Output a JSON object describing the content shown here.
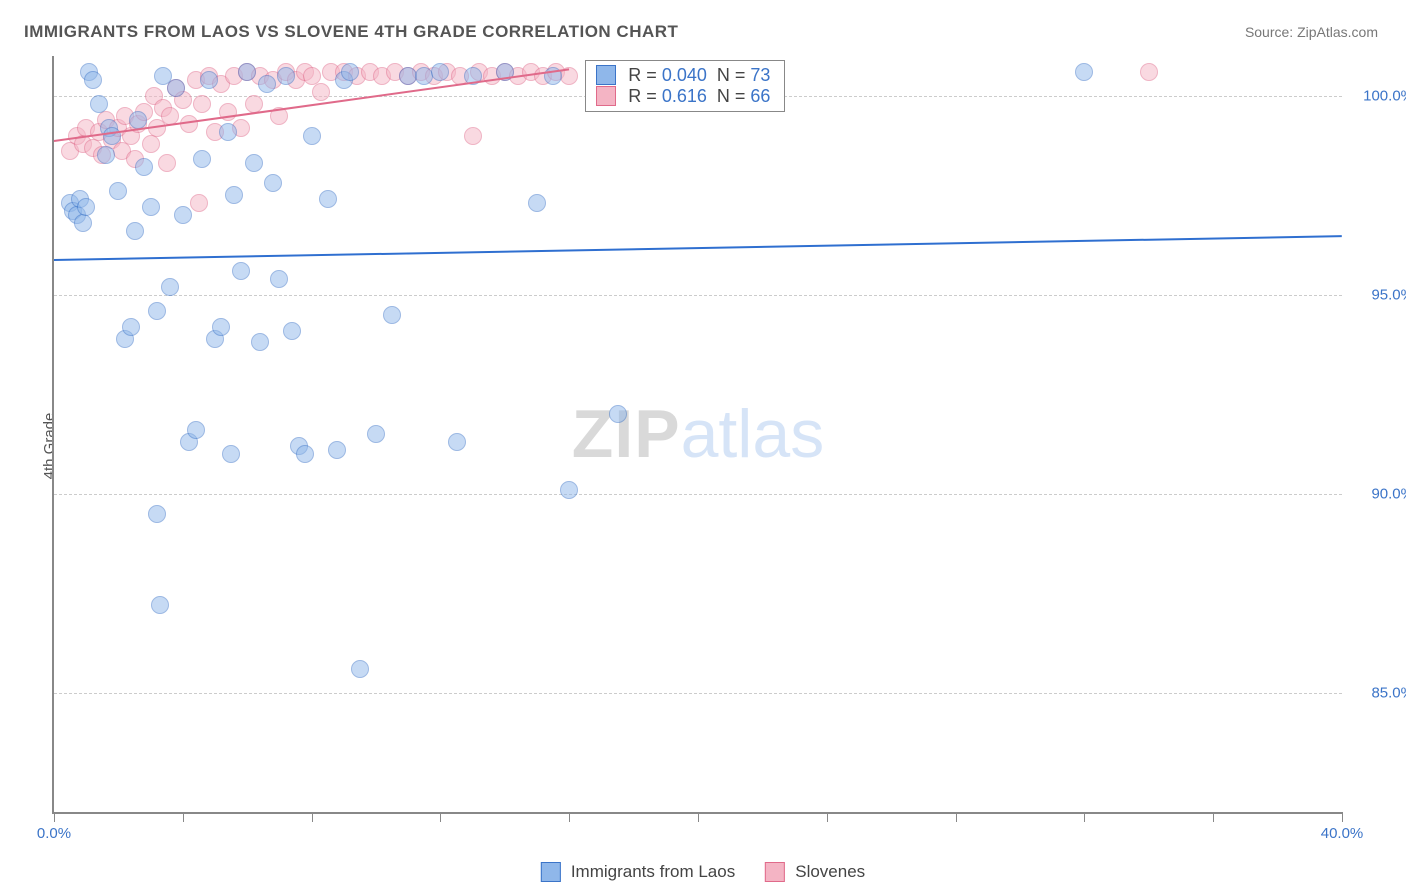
{
  "title": "IMMIGRANTS FROM LAOS VS SLOVENE 4TH GRADE CORRELATION CHART",
  "source_label": "Source: ZipAtlas.com",
  "y_axis_label": "4th Grade",
  "watermark": {
    "part1": "ZIP",
    "part2": "atlas"
  },
  "chart": {
    "type": "scatter",
    "background_color": "#ffffff",
    "grid_color": "#cccccc",
    "axis_color": "#888888",
    "xlim": [
      0,
      40
    ],
    "ylim": [
      82,
      101
    ],
    "x_ticks": [
      0,
      4,
      8,
      12,
      16,
      20,
      24,
      28,
      32,
      36,
      40
    ],
    "x_tick_labels": {
      "0": "0.0%",
      "40": "40.0%"
    },
    "y_ticks": [
      85,
      90,
      95,
      100
    ],
    "y_tick_labels": {
      "85": "85.0%",
      "90": "90.0%",
      "95": "95.0%",
      "100": "100.0%"
    },
    "y_tick_color": "#3b74c8",
    "x_tick_color": "#3b74c8",
    "marker_radius": 9,
    "marker_opacity": 0.5,
    "series": [
      {
        "name": "Immigrants from Laos",
        "color_fill": "#8fb7ea",
        "color_stroke": "#3b74c8",
        "r_value": "0.040",
        "n_value": "73",
        "trend": {
          "x1": 0,
          "y1": 95.9,
          "x2": 40,
          "y2": 96.5,
          "color": "#2f6fd0",
          "width": 2
        },
        "points": [
          [
            0.5,
            97.3
          ],
          [
            0.6,
            97.1
          ],
          [
            0.7,
            97.0
          ],
          [
            0.8,
            97.4
          ],
          [
            0.9,
            96.8
          ],
          [
            1.0,
            97.2
          ],
          [
            1.1,
            100.6
          ],
          [
            1.2,
            100.4
          ],
          [
            1.4,
            99.8
          ],
          [
            1.6,
            98.5
          ],
          [
            1.7,
            99.2
          ],
          [
            1.8,
            99.0
          ],
          [
            2.0,
            97.6
          ],
          [
            2.2,
            93.9
          ],
          [
            2.4,
            94.2
          ],
          [
            2.5,
            96.6
          ],
          [
            2.6,
            99.4
          ],
          [
            2.8,
            98.2
          ],
          [
            3.0,
            97.2
          ],
          [
            3.2,
            94.6
          ],
          [
            3.4,
            100.5
          ],
          [
            3.6,
            95.2
          ],
          [
            3.8,
            100.2
          ],
          [
            3.2,
            89.5
          ],
          [
            3.3,
            87.2
          ],
          [
            4.0,
            97.0
          ],
          [
            4.2,
            91.3
          ],
          [
            4.4,
            91.6
          ],
          [
            4.6,
            98.4
          ],
          [
            4.8,
            100.4
          ],
          [
            5.0,
            93.9
          ],
          [
            5.2,
            94.2
          ],
          [
            5.4,
            99.1
          ],
          [
            5.6,
            97.5
          ],
          [
            5.8,
            95.6
          ],
          [
            5.5,
            91.0
          ],
          [
            6.0,
            100.6
          ],
          [
            6.2,
            98.3
          ],
          [
            6.4,
            93.8
          ],
          [
            6.6,
            100.3
          ],
          [
            6.8,
            97.8
          ],
          [
            7.0,
            95.4
          ],
          [
            7.2,
            100.5
          ],
          [
            7.4,
            94.1
          ],
          [
            7.6,
            91.2
          ],
          [
            7.8,
            91.0
          ],
          [
            8.0,
            99.0
          ],
          [
            8.5,
            97.4
          ],
          [
            8.8,
            91.1
          ],
          [
            9.0,
            100.4
          ],
          [
            9.2,
            100.6
          ],
          [
            9.5,
            85.6
          ],
          [
            10.0,
            91.5
          ],
          [
            10.5,
            94.5
          ],
          [
            11.0,
            100.5
          ],
          [
            11.5,
            100.5
          ],
          [
            12.0,
            100.6
          ],
          [
            12.5,
            91.3
          ],
          [
            13.0,
            100.5
          ],
          [
            14.0,
            100.6
          ],
          [
            15.0,
            97.3
          ],
          [
            15.5,
            100.5
          ],
          [
            16.0,
            90.1
          ],
          [
            17.5,
            92.0
          ],
          [
            20.5,
            100.6
          ],
          [
            32.0,
            100.6
          ]
        ]
      },
      {
        "name": "Slovenes",
        "color_fill": "#f4b4c4",
        "color_stroke": "#e06a8a",
        "r_value": "0.616",
        "n_value": "66",
        "trend": {
          "x1": 0,
          "y1": 98.9,
          "x2": 16,
          "y2": 100.7,
          "color": "#e06a8a",
          "width": 2
        },
        "points": [
          [
            0.5,
            98.6
          ],
          [
            0.7,
            99.0
          ],
          [
            0.9,
            98.8
          ],
          [
            1.0,
            99.2
          ],
          [
            1.2,
            98.7
          ],
          [
            1.4,
            99.1
          ],
          [
            1.5,
            98.5
          ],
          [
            1.6,
            99.4
          ],
          [
            1.8,
            98.9
          ],
          [
            2.0,
            99.2
          ],
          [
            2.1,
            98.6
          ],
          [
            2.2,
            99.5
          ],
          [
            2.4,
            99.0
          ],
          [
            2.5,
            98.4
          ],
          [
            2.6,
            99.3
          ],
          [
            2.8,
            99.6
          ],
          [
            3.0,
            98.8
          ],
          [
            3.1,
            100.0
          ],
          [
            3.2,
            99.2
          ],
          [
            3.4,
            99.7
          ],
          [
            3.5,
            98.3
          ],
          [
            3.6,
            99.5
          ],
          [
            3.8,
            100.2
          ],
          [
            4.0,
            99.9
          ],
          [
            4.2,
            99.3
          ],
          [
            4.4,
            100.4
          ],
          [
            4.5,
            97.3
          ],
          [
            4.6,
            99.8
          ],
          [
            4.8,
            100.5
          ],
          [
            5.0,
            99.1
          ],
          [
            5.2,
            100.3
          ],
          [
            5.4,
            99.6
          ],
          [
            5.6,
            100.5
          ],
          [
            5.8,
            99.2
          ],
          [
            6.0,
            100.6
          ],
          [
            6.2,
            99.8
          ],
          [
            6.4,
            100.5
          ],
          [
            6.8,
            100.4
          ],
          [
            7.0,
            99.5
          ],
          [
            7.2,
            100.6
          ],
          [
            7.5,
            100.4
          ],
          [
            7.8,
            100.6
          ],
          [
            8.0,
            100.5
          ],
          [
            8.3,
            100.1
          ],
          [
            8.6,
            100.6
          ],
          [
            9.0,
            100.6
          ],
          [
            9.4,
            100.5
          ],
          [
            9.8,
            100.6
          ],
          [
            10.2,
            100.5
          ],
          [
            10.6,
            100.6
          ],
          [
            11.0,
            100.5
          ],
          [
            11.4,
            100.6
          ],
          [
            11.8,
            100.5
          ],
          [
            12.2,
            100.6
          ],
          [
            12.6,
            100.5
          ],
          [
            13.0,
            99.0
          ],
          [
            13.2,
            100.6
          ],
          [
            13.6,
            100.5
          ],
          [
            14.0,
            100.6
          ],
          [
            14.4,
            100.5
          ],
          [
            14.8,
            100.6
          ],
          [
            15.2,
            100.5
          ],
          [
            15.6,
            100.6
          ],
          [
            16.0,
            100.5
          ],
          [
            21.5,
            100.6
          ],
          [
            34.0,
            100.6
          ]
        ]
      }
    ],
    "legend_top": {
      "rows": [
        {
          "r_label": "R =",
          "n_label": "N ="
        },
        {
          "r_label": "R =",
          "n_label": "N ="
        }
      ]
    },
    "legend_bottom": {
      "items": [
        "Immigrants from Laos",
        "Slovenes"
      ]
    }
  }
}
